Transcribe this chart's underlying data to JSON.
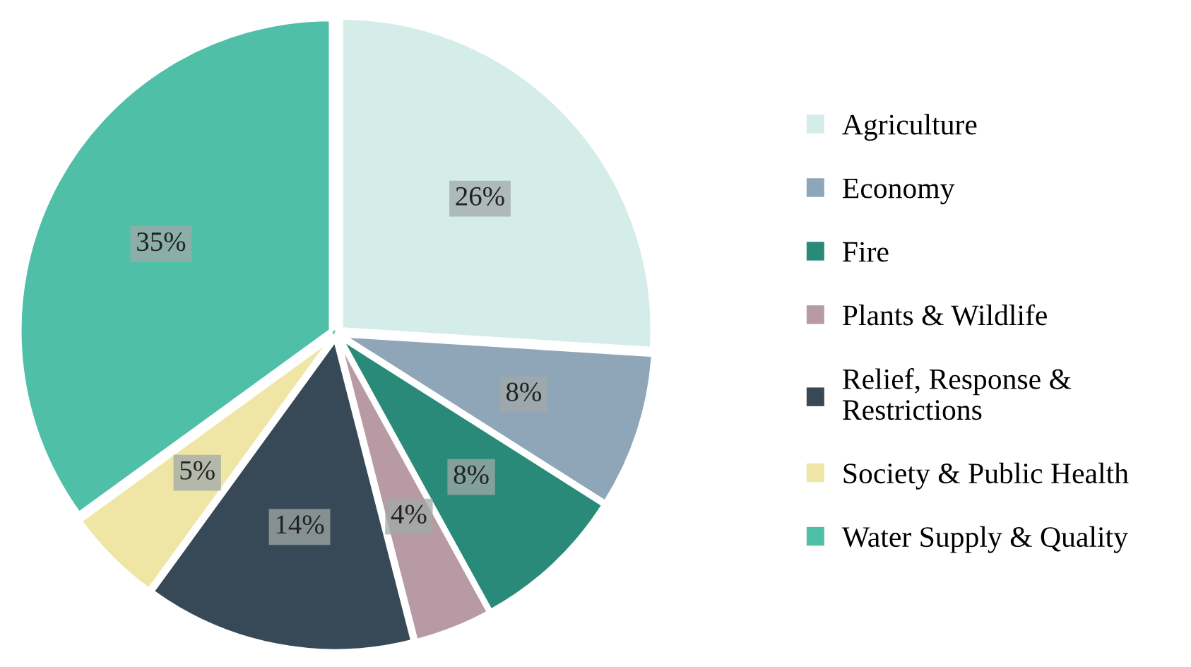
{
  "chart_data": {
    "type": "pie",
    "categories": [
      "Agriculture",
      "Economy",
      "Fire",
      "Plants & Wildlife",
      "Relief, Response &\nRestrictions",
      "Society & Public Health",
      "Water Supply & Quality"
    ],
    "values": [
      26,
      8,
      8,
      4,
      14,
      5,
      35
    ],
    "colors": [
      "#d4ede8",
      "#8fa6b8",
      "#2a8a7a",
      "#b89aa4",
      "#374856",
      "#efe6a6",
      "#4fbfa8"
    ],
    "value_labels": [
      "26%",
      "8%",
      "8%",
      "4%",
      "14%",
      "5%",
      "35%"
    ],
    "legend": "right"
  }
}
